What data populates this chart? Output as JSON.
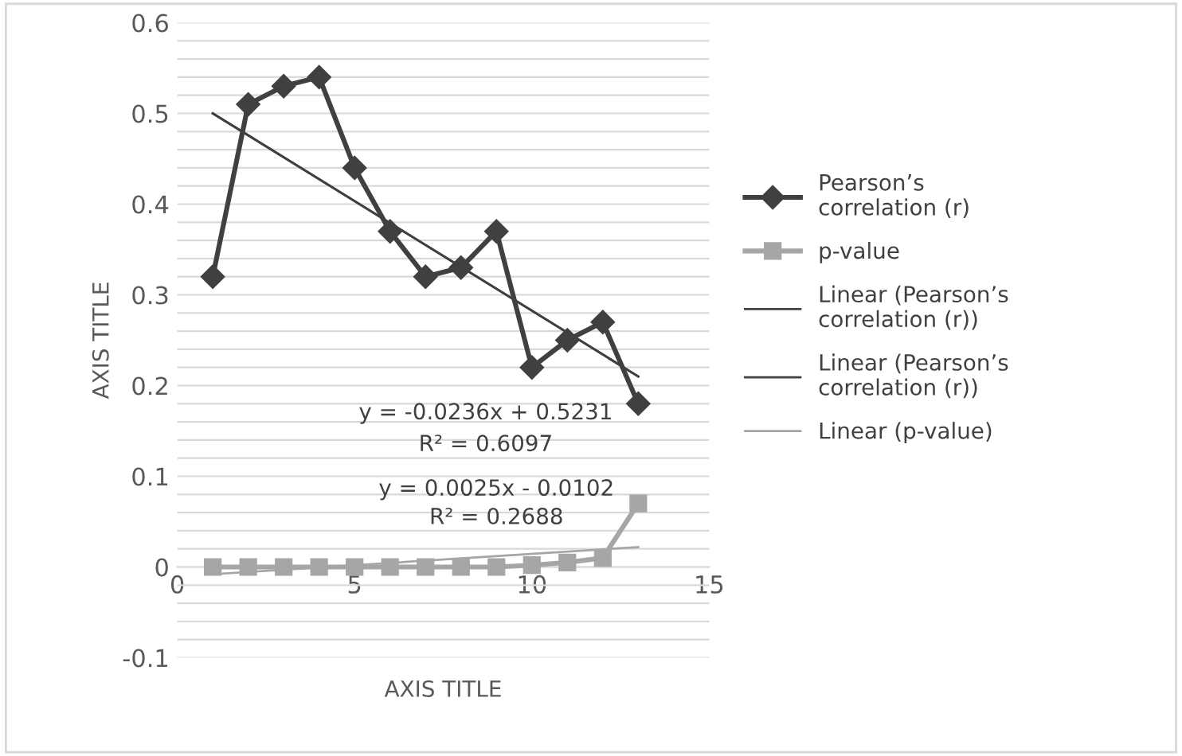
{
  "chart_data": {
    "type": "line",
    "xlabel": "AXIS TITLE",
    "ylabel": "AXIS TITLE",
    "series": [
      {
        "name": "Pearson’s correlation (r)",
        "color": "#404040",
        "marker": "diamond",
        "x": [
          1,
          2,
          3,
          4,
          5,
          6,
          7,
          8,
          9,
          10,
          11,
          12,
          13
        ],
        "values": [
          0.32,
          0.51,
          0.53,
          0.54,
          0.44,
          0.37,
          0.32,
          0.33,
          0.37,
          0.22,
          0.25,
          0.27,
          0.18
        ]
      },
      {
        "name": "p-value",
        "color": "#a6a6a6",
        "marker": "square",
        "x": [
          1,
          2,
          3,
          4,
          5,
          6,
          7,
          8,
          9,
          10,
          11,
          12,
          13
        ],
        "values": [
          0,
          0,
          0,
          0,
          0,
          0,
          0,
          0,
          0,
          0.002,
          0.005,
          0.01,
          0.07
        ]
      },
      {
        "name": "Linear (Pearson’s correlation (r))",
        "color": "#404040",
        "marker": "none",
        "x": [
          1,
          13
        ],
        "values": [
          0.5,
          0.21
        ]
      },
      {
        "name": "Linear (Pearson’s correlation (r))",
        "color": "#404040",
        "marker": "none",
        "x": [
          1,
          13
        ],
        "values": [
          0.5,
          0.21
        ]
      },
      {
        "name": "Linear (p-value)",
        "color": "#a6a6a6",
        "marker": "none",
        "x": [
          1,
          13
        ],
        "values": [
          -0.008,
          0.022
        ]
      }
    ],
    "annotations": [
      "y = -0.0236x + 0.5231",
      "R² = 0.6097",
      "y = 0.0025x - 0.0102",
      "R² = 0.2688"
    ],
    "xlim": [
      0,
      15
    ],
    "xticks": [
      0,
      5,
      10,
      15
    ],
    "ylim": [
      -0.1,
      0.6
    ],
    "yticks": [
      -0.1,
      {
        "value": -0.08,
        "label": null
      },
      {
        "value": -0.06,
        "label": null
      },
      {
        "value": -0.04,
        "label": null
      },
      {
        "value": -0.02,
        "label": null
      },
      0,
      {
        "value": 0.02,
        "label": null
      },
      {
        "value": 0.04,
        "label": null
      },
      {
        "value": 0.06,
        "label": null
      },
      {
        "value": 0.08,
        "label": null
      },
      0.1,
      {
        "value": 0.12,
        "label": null
      },
      {
        "value": 0.14,
        "label": null
      },
      {
        "value": 0.16,
        "label": null
      },
      {
        "value": 0.18,
        "label": null
      },
      0.2,
      {
        "value": 0.22,
        "label": null
      },
      {
        "value": 0.24,
        "label": null
      },
      {
        "value": 0.26,
        "label": null
      },
      {
        "value": 0.28,
        "label": null
      },
      0.3,
      {
        "value": 0.32,
        "label": null
      },
      {
        "value": 0.34,
        "label": null
      },
      {
        "value": 0.36,
        "label": null
      },
      {
        "value": 0.38,
        "label": null
      },
      0.4,
      {
        "value": 0.42,
        "label": null
      },
      {
        "value": 0.44,
        "label": null
      },
      {
        "value": 0.46,
        "label": null
      },
      {
        "value": 0.48,
        "label": null
      },
      0.5,
      {
        "value": 0.52,
        "label": null
      },
      {
        "value": 0.54,
        "label": null
      },
      {
        "value": 0.56,
        "label": null
      },
      {
        "value": 0.58,
        "label": null
      },
      0.6
    ],
    "grid": "y",
    "legend": "right",
    "line_style": "solid"
  }
}
